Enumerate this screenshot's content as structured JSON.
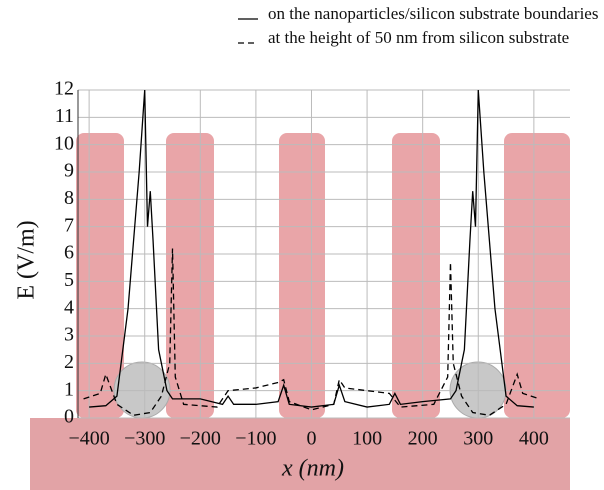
{
  "chart_data": {
    "type": "line",
    "xlabel": "x (nm)",
    "ylabel": "E (V/m)",
    "xlim": [
      -420,
      465
    ],
    "ylim": [
      0,
      12
    ],
    "xticks": [
      {
        "value": -400,
        "label": "−400"
      },
      {
        "value": -300,
        "label": "−300"
      },
      {
        "value": -200,
        "label": "−200"
      },
      {
        "value": -100,
        "label": "−100"
      },
      0,
      100,
      200,
      300,
      400
    ],
    "yticks": [
      0,
      1,
      2,
      3,
      4,
      5,
      6,
      7,
      8,
      9,
      10,
      11,
      12
    ],
    "grid": true,
    "series": [
      {
        "name": "on the nanoparticles/silicon substrate boundaries",
        "color": "#000000",
        "dash": "solid",
        "x": [
          -400,
          -370,
          -350,
          -330,
          -310,
          -300,
          -295,
          -290,
          -285,
          -275,
          -260,
          -250,
          -200,
          -160,
          -150,
          -140,
          -100,
          -60,
          -50,
          -40,
          0,
          40,
          50,
          60,
          100,
          140,
          150,
          160,
          200,
          250,
          260,
          275,
          285,
          290,
          295,
          300,
          310,
          330,
          350,
          370,
          400
        ],
        "values": [
          0.4,
          0.45,
          0.8,
          4,
          9,
          12,
          7,
          8.3,
          6.5,
          2.5,
          1,
          0.7,
          0.7,
          0.5,
          0.8,
          0.5,
          0.5,
          0.6,
          1.2,
          0.5,
          0.4,
          0.5,
          1.2,
          0.6,
          0.4,
          0.5,
          0.9,
          0.5,
          0.6,
          0.7,
          1,
          2.5,
          6.5,
          8.3,
          7,
          12,
          9,
          4,
          0.8,
          0.45,
          0.4
        ]
      },
      {
        "name": "at the height of 50 nm from silicon substrate",
        "color": "#000000",
        "dash": "dashed",
        "x": [
          -410,
          -380,
          -370,
          -350,
          -320,
          -290,
          -270,
          -255,
          -250,
          -245,
          -230,
          -170,
          -150,
          -100,
          -60,
          -50,
          -40,
          0,
          40,
          50,
          60,
          100,
          140,
          160,
          220,
          245,
          250,
          255,
          270,
          290,
          320,
          350,
          370,
          380,
          410
        ],
        "values": [
          0.7,
          0.9,
          1.6,
          0.5,
          0.1,
          0.2,
          0.8,
          2,
          6.2,
          1.5,
          0.5,
          0.4,
          1.0,
          1.1,
          1.3,
          1.4,
          0.6,
          0.3,
          0.5,
          1.4,
          1.1,
          1.0,
          0.9,
          0.4,
          0.5,
          1.5,
          5.7,
          2,
          0.8,
          0.2,
          0.1,
          0.5,
          1.6,
          0.9,
          0.7
        ]
      }
    ]
  }
}
